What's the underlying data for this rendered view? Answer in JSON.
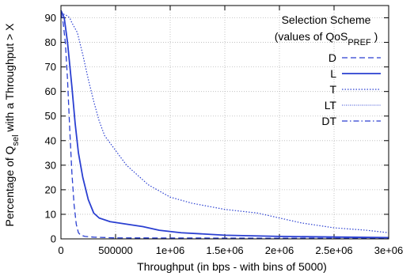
{
  "chart_data": {
    "type": "line",
    "xlabel": "Throughput (in bps - with bins of 5000)",
    "ylabel_parts": {
      "pre": "Percentage of  Q",
      "sub": "sel",
      "post": "  with a Throughput > X"
    },
    "xlim": [
      0,
      3000000
    ],
    "ylim": [
      0,
      95
    ],
    "x_ticks": [
      0,
      500000,
      1000000,
      1500000,
      2000000,
      2500000,
      3000000
    ],
    "x_tick_labels": [
      "0",
      "500000",
      "1e+06",
      "1.5e+06",
      "2e+06",
      "2.5e+06",
      "3e+06"
    ],
    "y_ticks": [
      0,
      10,
      20,
      30,
      40,
      50,
      60,
      70,
      80,
      90
    ],
    "y_tick_labels": [
      "0",
      "10",
      "20",
      "30",
      "40",
      "50",
      "60",
      "70",
      "80",
      "90"
    ],
    "legend": {
      "title_line1": "Selection Scheme",
      "title_line2_pre": "(values of QoS",
      "title_line2_sub": "PREF",
      "title_line2_post": " )",
      "placement": "top-right"
    },
    "series": [
      {
        "name": "D",
        "dash": "dashed",
        "points": [
          [
            0,
            92
          ],
          [
            20000,
            88
          ],
          [
            40000,
            80
          ],
          [
            60000,
            65
          ],
          [
            80000,
            45
          ],
          [
            100000,
            27
          ],
          [
            120000,
            14
          ],
          [
            140000,
            6
          ],
          [
            160000,
            2.5
          ],
          [
            180000,
            1.5
          ],
          [
            220000,
            1
          ],
          [
            300000,
            0.7
          ],
          [
            500000,
            0.4
          ],
          [
            3000000,
            0.2
          ]
        ]
      },
      {
        "name": "L",
        "dash": "solid",
        "points": [
          [
            0,
            93
          ],
          [
            30000,
            90
          ],
          [
            60000,
            80
          ],
          [
            100000,
            62
          ],
          [
            130000,
            47
          ],
          [
            160000,
            35
          ],
          [
            200000,
            25
          ],
          [
            250000,
            16
          ],
          [
            300000,
            10.5
          ],
          [
            350000,
            8.5
          ],
          [
            450000,
            7
          ],
          [
            600000,
            6
          ],
          [
            750000,
            5
          ],
          [
            900000,
            3.5
          ],
          [
            1100000,
            2.5
          ],
          [
            1500000,
            1.5
          ],
          [
            2000000,
            1
          ],
          [
            3000000,
            0.5
          ]
        ]
      },
      {
        "name": "T",
        "dash": "dotted",
        "points": [
          [
            0,
            92
          ],
          [
            50000,
            91
          ],
          [
            80000,
            90
          ],
          [
            100000,
            88
          ],
          [
            150000,
            84
          ],
          [
            200000,
            75
          ],
          [
            250000,
            65
          ],
          [
            300000,
            56
          ],
          [
            350000,
            48
          ],
          [
            400000,
            42
          ],
          [
            500000,
            36
          ],
          [
            600000,
            30
          ],
          [
            700000,
            26
          ],
          [
            800000,
            22
          ],
          [
            1000000,
            17
          ],
          [
            1200000,
            14.5
          ],
          [
            1500000,
            12
          ],
          [
            1800000,
            10.5
          ],
          [
            2000000,
            8.5
          ],
          [
            2200000,
            6.5
          ],
          [
            2500000,
            4.5
          ],
          [
            2800000,
            3.5
          ],
          [
            3000000,
            2.5
          ]
        ]
      },
      {
        "name": "LT",
        "dash": "fine-dotted",
        "points": []
      },
      {
        "name": "DT",
        "dash": "dash-dot",
        "points": []
      }
    ]
  }
}
